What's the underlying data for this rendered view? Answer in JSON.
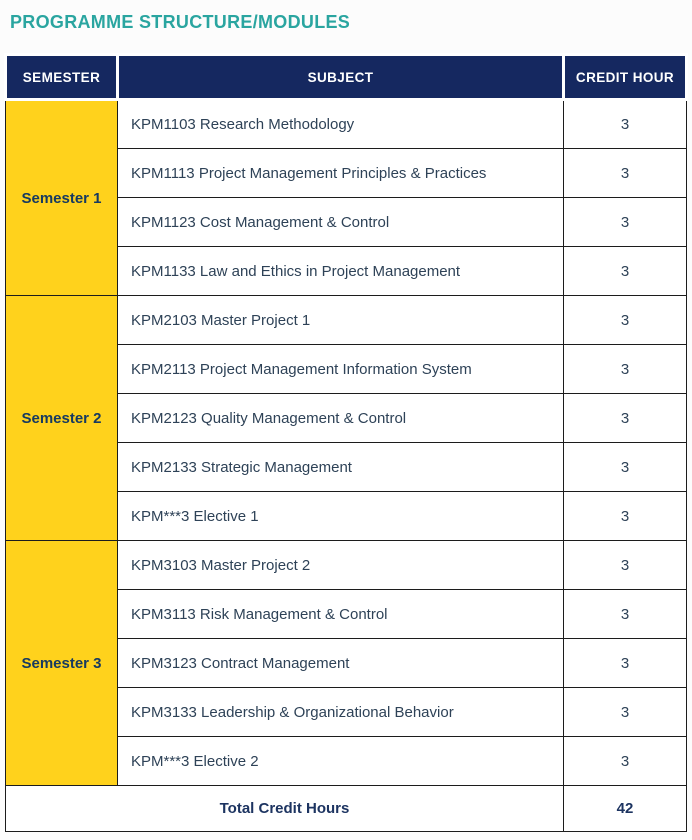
{
  "page": {
    "title": "PROGRAMME STRUCTURE/MODULES"
  },
  "table": {
    "headers": [
      "SEMESTER",
      "SUBJECT",
      "CREDIT HOUR"
    ],
    "semesters": [
      {
        "label": "Semester 1",
        "subjects": [
          {
            "name": "KPM1103 Research Methodology",
            "credit": "3"
          },
          {
            "name": "KPM1113 Project Management Principles & Practices",
            "credit": "3"
          },
          {
            "name": "KPM1123 Cost Management & Control",
            "credit": "3"
          },
          {
            "name": "KPM1133 Law and Ethics in Project Management",
            "credit": "3"
          }
        ]
      },
      {
        "label": "Semester 2",
        "subjects": [
          {
            "name": "KPM2103 Master Project 1",
            "credit": "3"
          },
          {
            "name": "KPM2113 Project Management Information System",
            "credit": "3"
          },
          {
            "name": "KPM2123 Quality Management & Control",
            "credit": "3"
          },
          {
            "name": "KPM2133 Strategic Management",
            "credit": "3"
          },
          {
            "name": "KPM***3 Elective 1",
            "credit": "3"
          }
        ]
      },
      {
        "label": "Semester 3",
        "subjects": [
          {
            "name": "KPM3103 Master Project 2",
            "credit": "3"
          },
          {
            "name": "KPM3113 Risk Management & Control",
            "credit": "3"
          },
          {
            "name": "KPM3123 Contract Management",
            "credit": "3"
          },
          {
            "name": "KPM3133 Leadership & Organizational Behavior",
            "credit": "3"
          },
          {
            "name": "KPM***3 Elective 2",
            "credit": "3"
          }
        ]
      }
    ],
    "footer": {
      "label": "Total Credit Hours",
      "value": "42"
    }
  },
  "colors": {
    "title_teal": "#2AA5A0",
    "header_navy": "#152860",
    "semester_yellow": "#FFD21C",
    "body_text": "#2E4257",
    "border_dark": "#1C1C1C",
    "bottom_bar_grey": "#D4D8D4"
  }
}
